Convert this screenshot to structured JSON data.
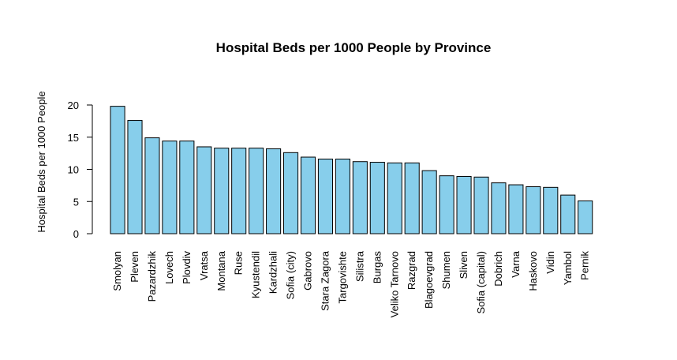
{
  "chart_data": {
    "type": "bar",
    "title": "Hospital Beds per 1000 People by Province",
    "xlabel": "",
    "ylabel": "Hospital Beds per 1000 People",
    "ylim": [
      0,
      20
    ],
    "yticks": [
      0,
      5,
      10,
      15,
      20
    ],
    "grid": false,
    "legend": "none",
    "bar_color": "#87ceeb",
    "bar_border_color": "#000000",
    "categories": [
      "Smolyan",
      "Pleven",
      "Pazardzhik",
      "Lovech",
      "Plovdiv",
      "Vratsa",
      "Montana",
      "Ruse",
      "Kyustendil",
      "Kardzhali",
      "Sofia (city)",
      "Gabrovo",
      "Stara Zagora",
      "Targovishte",
      "Silistra",
      "Burgas",
      "Veliko Tarnovo",
      "Razgrad",
      "Blagoevgrad",
      "Shumen",
      "Sliven",
      "Sofia (capital)",
      "Dobrich",
      "Varna",
      "Haskovo",
      "Vidin",
      "Yambol",
      "Pernik"
    ],
    "values": [
      19.8,
      17.6,
      14.9,
      14.4,
      14.4,
      13.5,
      13.3,
      13.3,
      13.3,
      13.2,
      12.6,
      11.9,
      11.6,
      11.6,
      11.2,
      11.1,
      11.0,
      11.0,
      9.8,
      9.0,
      8.9,
      8.8,
      7.9,
      7.6,
      7.3,
      7.2,
      6.0,
      5.1
    ]
  }
}
